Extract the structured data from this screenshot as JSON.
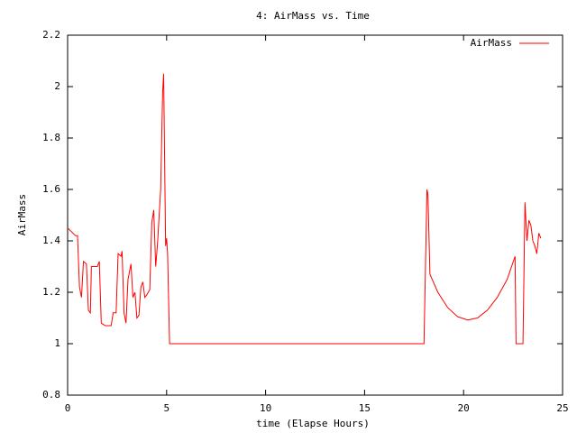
{
  "chart_data": {
    "type": "line",
    "title": "4: AirMass vs. Time",
    "xlabel": "time (Elapse Hours)",
    "ylabel": "AirMass",
    "x": [
      0,
      0.4,
      0.5,
      0.6,
      0.7,
      0.8,
      0.95,
      1.05,
      1.15,
      1.2,
      1.5,
      1.6,
      1.7,
      1.9,
      2.2,
      2.3,
      2.45,
      2.55,
      2.7,
      2.75,
      2.85,
      2.95,
      3.05,
      3.2,
      3.3,
      3.4,
      3.5,
      3.6,
      3.7,
      3.8,
      3.9,
      4.0,
      4.15,
      4.25,
      4.35,
      4.45,
      4.55,
      4.7,
      4.8,
      4.85,
      4.95,
      5.0,
      5.05,
      5.15,
      18.0,
      18.15,
      18.2,
      18.3,
      18.7,
      19.2,
      19.7,
      20.2,
      20.7,
      21.2,
      21.7,
      22.2,
      22.6,
      22.65,
      23.0,
      23.1,
      23.2,
      23.3,
      23.4,
      23.5,
      23.6,
      23.7,
      23.8,
      23.9
    ],
    "series": [
      {
        "name": "AirMass",
        "color": "#ff0000",
        "values": [
          1.45,
          1.42,
          1.42,
          1.22,
          1.18,
          1.32,
          1.31,
          1.13,
          1.12,
          1.3,
          1.3,
          1.32,
          1.08,
          1.07,
          1.07,
          1.12,
          1.12,
          1.35,
          1.34,
          1.36,
          1.12,
          1.08,
          1.25,
          1.31,
          1.18,
          1.2,
          1.1,
          1.11,
          1.22,
          1.24,
          1.18,
          1.19,
          1.21,
          1.47,
          1.52,
          1.3,
          1.4,
          1.6,
          1.98,
          2.05,
          1.38,
          1.41,
          1.35,
          1.0,
          1.0,
          1.6,
          1.58,
          1.27,
          1.2,
          1.14,
          1.105,
          1.092,
          1.1,
          1.13,
          1.18,
          1.25,
          1.34,
          1.0,
          1.0,
          1.55,
          1.4,
          1.48,
          1.46,
          1.4,
          1.38,
          1.35,
          1.43,
          1.41
        ]
      }
    ],
    "xlim": [
      0,
      25
    ],
    "xticks": [
      0,
      5,
      10,
      15,
      20,
      25
    ],
    "ylim": [
      0.8,
      2.2
    ],
    "yticks": [
      0.8,
      1,
      1.2,
      1.4,
      1.6,
      1.8,
      2,
      2.2
    ],
    "legend": "top-right",
    "grid": false
  }
}
